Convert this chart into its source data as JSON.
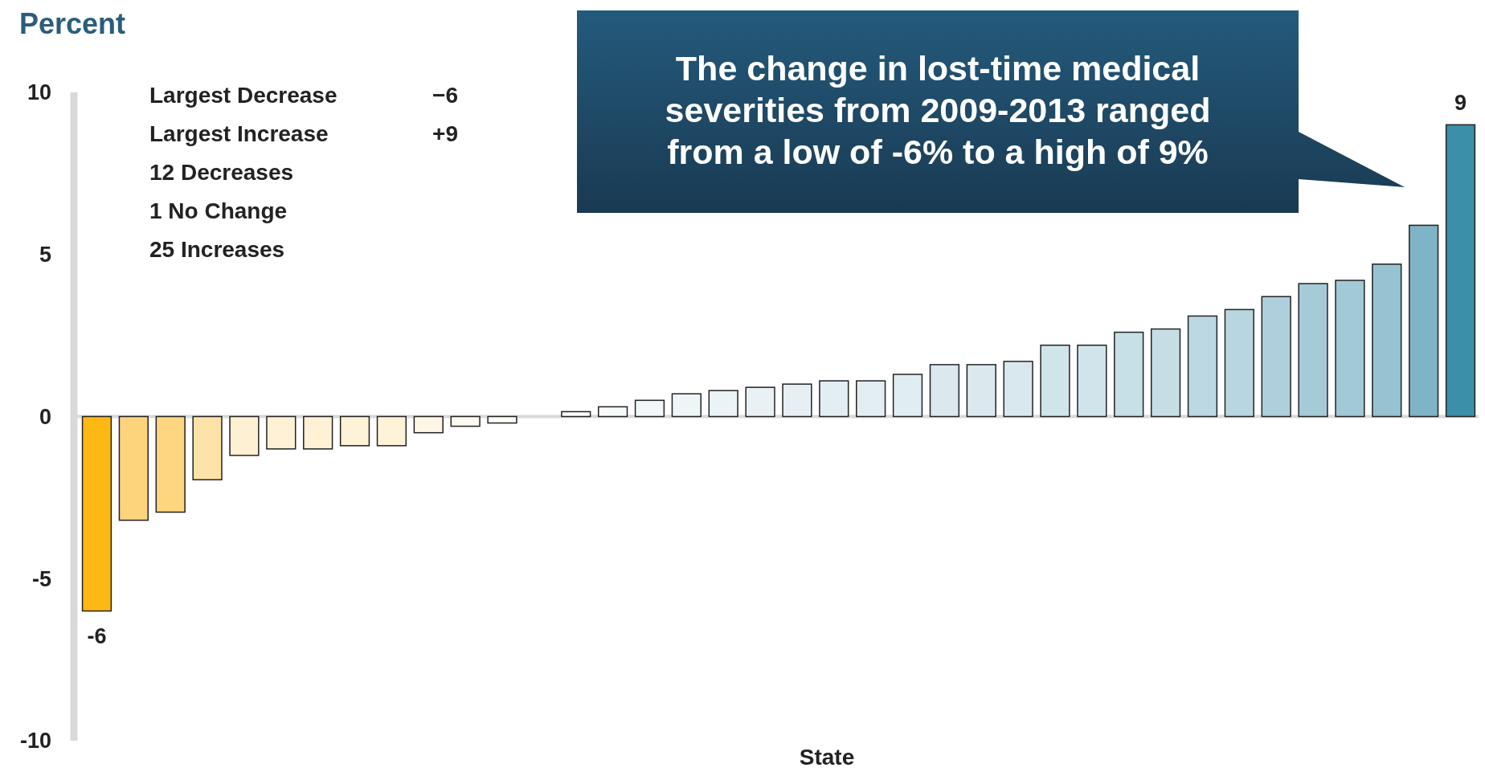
{
  "chart_data": {
    "type": "bar",
    "ylabel": "Percent",
    "xlabel": "State",
    "categories": [
      null,
      null,
      null,
      null,
      null,
      null,
      null,
      null,
      null,
      null,
      null,
      null,
      null,
      null,
      null,
      null,
      null,
      null,
      null,
      null,
      null,
      null,
      null,
      null,
      null,
      null,
      null,
      null,
      null,
      null,
      null,
      null,
      null,
      null,
      null,
      null,
      null,
      null
    ],
    "values": [
      -6,
      -3.2,
      -2.95,
      -1.95,
      -1.2,
      -1,
      -1,
      -0.9,
      -0.9,
      -0.5,
      -0.3,
      -0.2,
      0,
      0.15,
      0.3,
      0.5,
      0.7,
      0.8,
      0.9,
      1,
      1.1,
      1.1,
      1.3,
      1.6,
      1.6,
      1.7,
      2.2,
      2.2,
      2.6,
      2.7,
      3.1,
      3.3,
      3.7,
      4.1,
      4.2,
      4.7,
      5.9,
      9
    ],
    "colors": [
      "#fdb813",
      "#fdd47c",
      "#fdd67f",
      "#fde3a8",
      "#fef0d2",
      "#fef1d6",
      "#fef1d6",
      "#fef2d8",
      "#fef2d8",
      "#fef6e4",
      "#fefaf0",
      "#fffdf8",
      "#ffffff",
      "#fbfdfe",
      "#f6fafb",
      "#f1f7f9",
      "#edf5f7",
      "#eaf3f6",
      "#e8f2f5",
      "#e6f0f4",
      "#e3eef3",
      "#e3eef3",
      "#e0edf2",
      "#dbe9ef",
      "#dbe9ef",
      "#d9e8ee",
      "#d0e4eb",
      "#d0e4eb",
      "#c7dfe7",
      "#c5dee6",
      "#bcd8e2",
      "#b8d6e0",
      "#aed0dc",
      "#a5cbd8",
      "#a2c9d7",
      "#97c2d1",
      "#7fb3c6",
      "#3c8fa9"
    ],
    "value_labels": [
      "-6",
      null,
      null,
      null,
      null,
      null,
      null,
      null,
      null,
      null,
      null,
      null,
      null,
      null,
      null,
      null,
      null,
      null,
      null,
      null,
      null,
      null,
      null,
      null,
      null,
      null,
      null,
      null,
      null,
      null,
      null,
      null,
      null,
      null,
      null,
      null,
      null,
      "9"
    ],
    "ylim": [
      -10,
      10
    ],
    "yticks": [
      -10,
      -5,
      0,
      5,
      10
    ],
    "annotations": [
      "The change in lost-time medical severities from 2009-2013 ranged from a low of -6% to a high of 9%",
      "Largest Decrease",
      "−6",
      "Largest Increase",
      "+9",
      "12 Decreases",
      "1 No Change",
      "25 Increases"
    ]
  }
}
